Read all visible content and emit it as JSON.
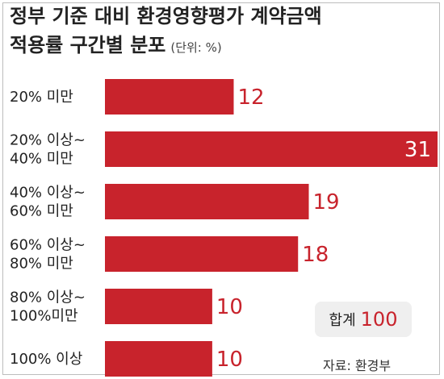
{
  "title_line1": "정부 기준 대비 환경영향평가 계약금액",
  "title_line2": "적용률 구간별 분포",
  "unit": "(단위: %)",
  "total_label": "합계",
  "total_value": "100",
  "source": "자료: 환경부",
  "bar_color": "#c8232c",
  "label_color": "#222222",
  "chart_data": {
    "type": "bar",
    "orientation": "horizontal",
    "title": "정부 기준 대비 환경영향평가 계약금액 적용률 구간별 분포",
    "categories": [
      [
        "20% 미만"
      ],
      [
        "20% 이상~",
        "40% 미만"
      ],
      [
        "40% 이상~",
        "60% 미만"
      ],
      [
        "60% 이상~",
        "80% 미만"
      ],
      [
        "80% 이상~",
        "100%미만"
      ],
      [
        "100% 이상"
      ]
    ],
    "values": [
      12,
      31,
      19,
      18,
      10,
      10
    ],
    "xlim": [
      0,
      31
    ],
    "grid": false,
    "legend": "none"
  }
}
